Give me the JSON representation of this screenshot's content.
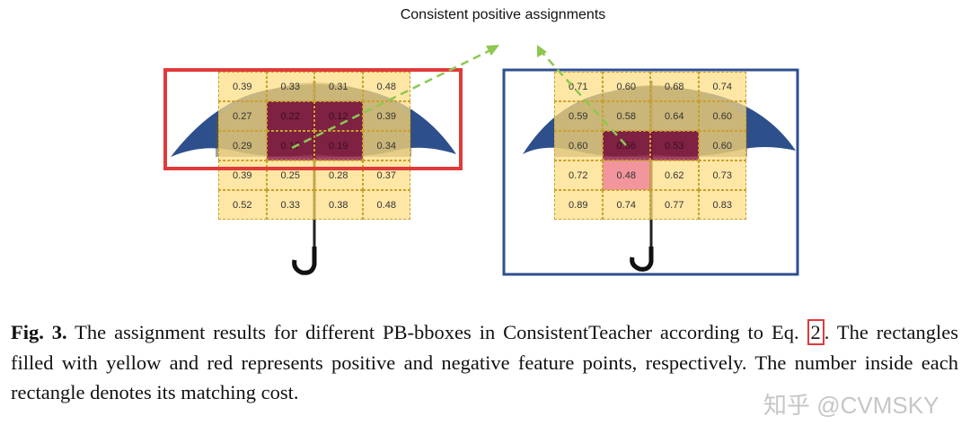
{
  "figure": {
    "title": "Consistent positive assignments",
    "left_grid": [
      [
        "0.39",
        "0.33",
        "0.31",
        "0.48"
      ],
      [
        "0.27",
        "0.22",
        "0.12",
        "0.39"
      ],
      [
        "0.29",
        "0.17",
        "0.19",
        "0.34"
      ],
      [
        "0.39",
        "0.25",
        "0.28",
        "0.37"
      ],
      [
        "0.52",
        "0.33",
        "0.38",
        "0.48"
      ]
    ],
    "left_negative": [
      [
        1,
        1
      ],
      [
        1,
        2
      ],
      [
        2,
        1
      ],
      [
        2,
        2
      ]
    ],
    "right_grid": [
      [
        "0.71",
        "0.60",
        "0.68",
        "0.74"
      ],
      [
        "0.59",
        "0.58",
        "0.64",
        "0.60"
      ],
      [
        "0.60",
        "0.56",
        "0.53",
        "0.60"
      ],
      [
        "0.72",
        "0.48",
        "0.62",
        "0.73"
      ],
      [
        "0.89",
        "0.74",
        "0.77",
        "0.83"
      ]
    ],
    "right_negative": [
      [
        2,
        1
      ],
      [
        2,
        2
      ]
    ],
    "right_negative_light": [
      [
        3,
        1
      ]
    ],
    "colors": {
      "left_box": "#e03a3a",
      "right_box": "#2f4f8f",
      "arrow": "#8dc850",
      "positive": "#fddd82",
      "negative": "#8c143c"
    }
  },
  "caption": {
    "label": "Fig. 3.",
    "text_before": " The assignment results for different PB-bboxes in ConsistentTeacher according to Eq. ",
    "eq_ref": "2",
    "text_after": ". The rectangles filled with yellow and red represents positive and negative feature points, respectively. The number inside each rectangle denotes its matching cost."
  },
  "watermark": "知乎 @CVMSKY"
}
